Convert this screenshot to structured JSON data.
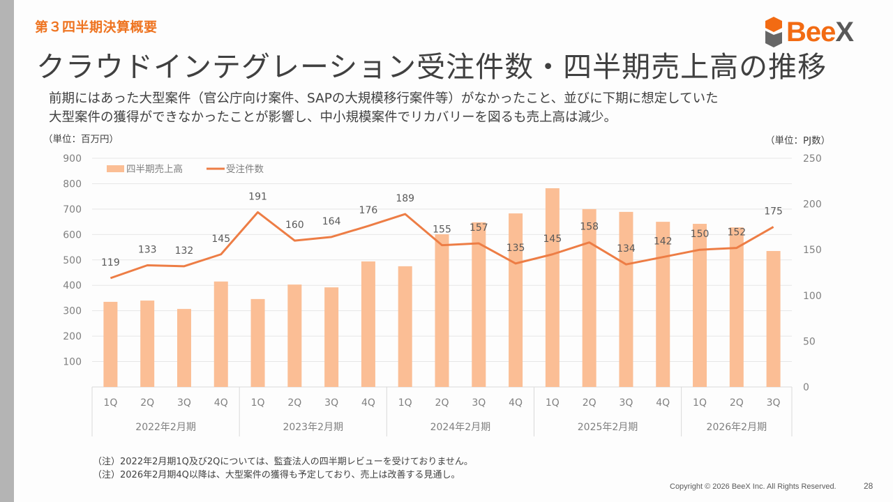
{
  "header": {
    "section": "第３四半期決算概要",
    "title": "クラウドインテグレーション受注件数・四半期売上高の推移",
    "logo_text_main": "Bee",
    "logo_text_accent": "X"
  },
  "description": {
    "line1": "前期にはあった大型案件（官公庁向け案件、SAPの大規模移行案件等）がなかったこと、並びに下期に想定していた",
    "line2": "大型案件の獲得ができなかったことが影響し、中小規模案件でリカバリーを図るも売上高は減少。"
  },
  "units": {
    "left": "（単位：百万円）",
    "right": "（単位：PJ数）"
  },
  "notes": [
    "（注）2022年2月期1Q及び2Qについては、監査法人の四半期レビューを受けておりません。",
    "（注）2026年2月期4Q以降は、大型案件の獲得も予定しており、売上は改善する見通し。"
  ],
  "footer": {
    "copyright": "Copyright © 2026 BeeX Inc. All Rights Reserved.",
    "page": "28"
  },
  "colors": {
    "accent": "#ee7421",
    "bar": "#fbbe95",
    "line": "#ed7d45",
    "grid": "#e6e6e6",
    "axis_text": "#7f7f7f"
  },
  "chart_data": {
    "type": "bar+line",
    "title": "",
    "categories": [
      "1Q",
      "2Q",
      "3Q",
      "4Q",
      "1Q",
      "2Q",
      "3Q",
      "4Q",
      "1Q",
      "2Q",
      "3Q",
      "4Q",
      "1Q",
      "2Q",
      "3Q",
      "4Q",
      "1Q",
      "2Q",
      "3Q"
    ],
    "groups": [
      {
        "label": "2022年2月期",
        "count": 4
      },
      {
        "label": "2023年2月期",
        "count": 4
      },
      {
        "label": "2024年2月期",
        "count": 4
      },
      {
        "label": "2025年2月期",
        "count": 4
      },
      {
        "label": "2026年2月期",
        "count": 3
      }
    ],
    "series": [
      {
        "name": "四半期売上高",
        "type": "bar",
        "axis": "left",
        "values": [
          335,
          340,
          307,
          415,
          346,
          403,
          392,
          494,
          475,
          601,
          648,
          683,
          782,
          700,
          689,
          650,
          642,
          628,
          535
        ]
      },
      {
        "name": "受注件数",
        "type": "line",
        "axis": "right",
        "values": [
          119,
          133,
          132,
          145,
          191,
          160,
          164,
          176,
          189,
          155,
          157,
          135,
          145,
          158,
          134,
          142,
          150,
          152,
          175
        ],
        "data_labels": true
      }
    ],
    "y_left": {
      "label": "（単位：百万円）",
      "ylim": [
        0,
        900
      ],
      "ticks": [
        100,
        200,
        300,
        400,
        500,
        600,
        700,
        800,
        900
      ]
    },
    "y_right": {
      "label": "（単位：PJ数）",
      "ylim": [
        0,
        250
      ],
      "ticks": [
        0,
        50,
        100,
        150,
        200,
        250
      ]
    },
    "grid": true,
    "legend": {
      "position": "top-left",
      "entries": [
        "四半期売上高",
        "受注件数"
      ]
    }
  }
}
